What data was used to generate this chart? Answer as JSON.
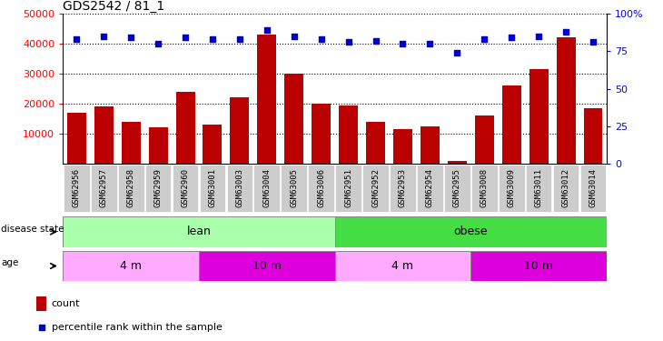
{
  "title": "GDS2542 / 81_1",
  "samples": [
    "GSM62956",
    "GSM62957",
    "GSM62958",
    "GSM62959",
    "GSM62960",
    "GSM63001",
    "GSM63003",
    "GSM63004",
    "GSM63005",
    "GSM63006",
    "GSM62951",
    "GSM62952",
    "GSM62953",
    "GSM62954",
    "GSM62955",
    "GSM63008",
    "GSM63009",
    "GSM63011",
    "GSM63012",
    "GSM63014"
  ],
  "counts": [
    17000,
    19000,
    14000,
    12000,
    24000,
    13000,
    22000,
    43000,
    30000,
    20000,
    19500,
    14000,
    11500,
    12500,
    1000,
    16000,
    26000,
    31500,
    42000,
    18500
  ],
  "percentiles": [
    83,
    85,
    84,
    80,
    84,
    83,
    83,
    89,
    85,
    83,
    81,
    82,
    80,
    80,
    74,
    83,
    84,
    85,
    88,
    81
  ],
  "ylim_left": [
    0,
    50000
  ],
  "ylim_right": [
    0,
    100
  ],
  "yticks_left": [
    10000,
    20000,
    30000,
    40000,
    50000
  ],
  "yticks_right": [
    0,
    25,
    50,
    75,
    100
  ],
  "disease_lean": [
    0,
    10
  ],
  "disease_obese": [
    10,
    20
  ],
  "age_4m_lean": [
    0,
    5
  ],
  "age_10m_lean": [
    5,
    10
  ],
  "age_4m_obese": [
    10,
    15
  ],
  "age_10m_obese": [
    15,
    20
  ],
  "bar_color": "#bb0000",
  "dot_color": "#0000cc",
  "lean_color": "#aaffaa",
  "obese_color": "#44dd44",
  "age_4m_color": "#ffaaff",
  "age_10m_color": "#dd00dd",
  "xtick_bg": "#cccccc",
  "plot_bg": "#ffffff",
  "grid_color": "#000000",
  "legend_count_color": "#bb0000",
  "legend_pct_color": "#0000cc"
}
